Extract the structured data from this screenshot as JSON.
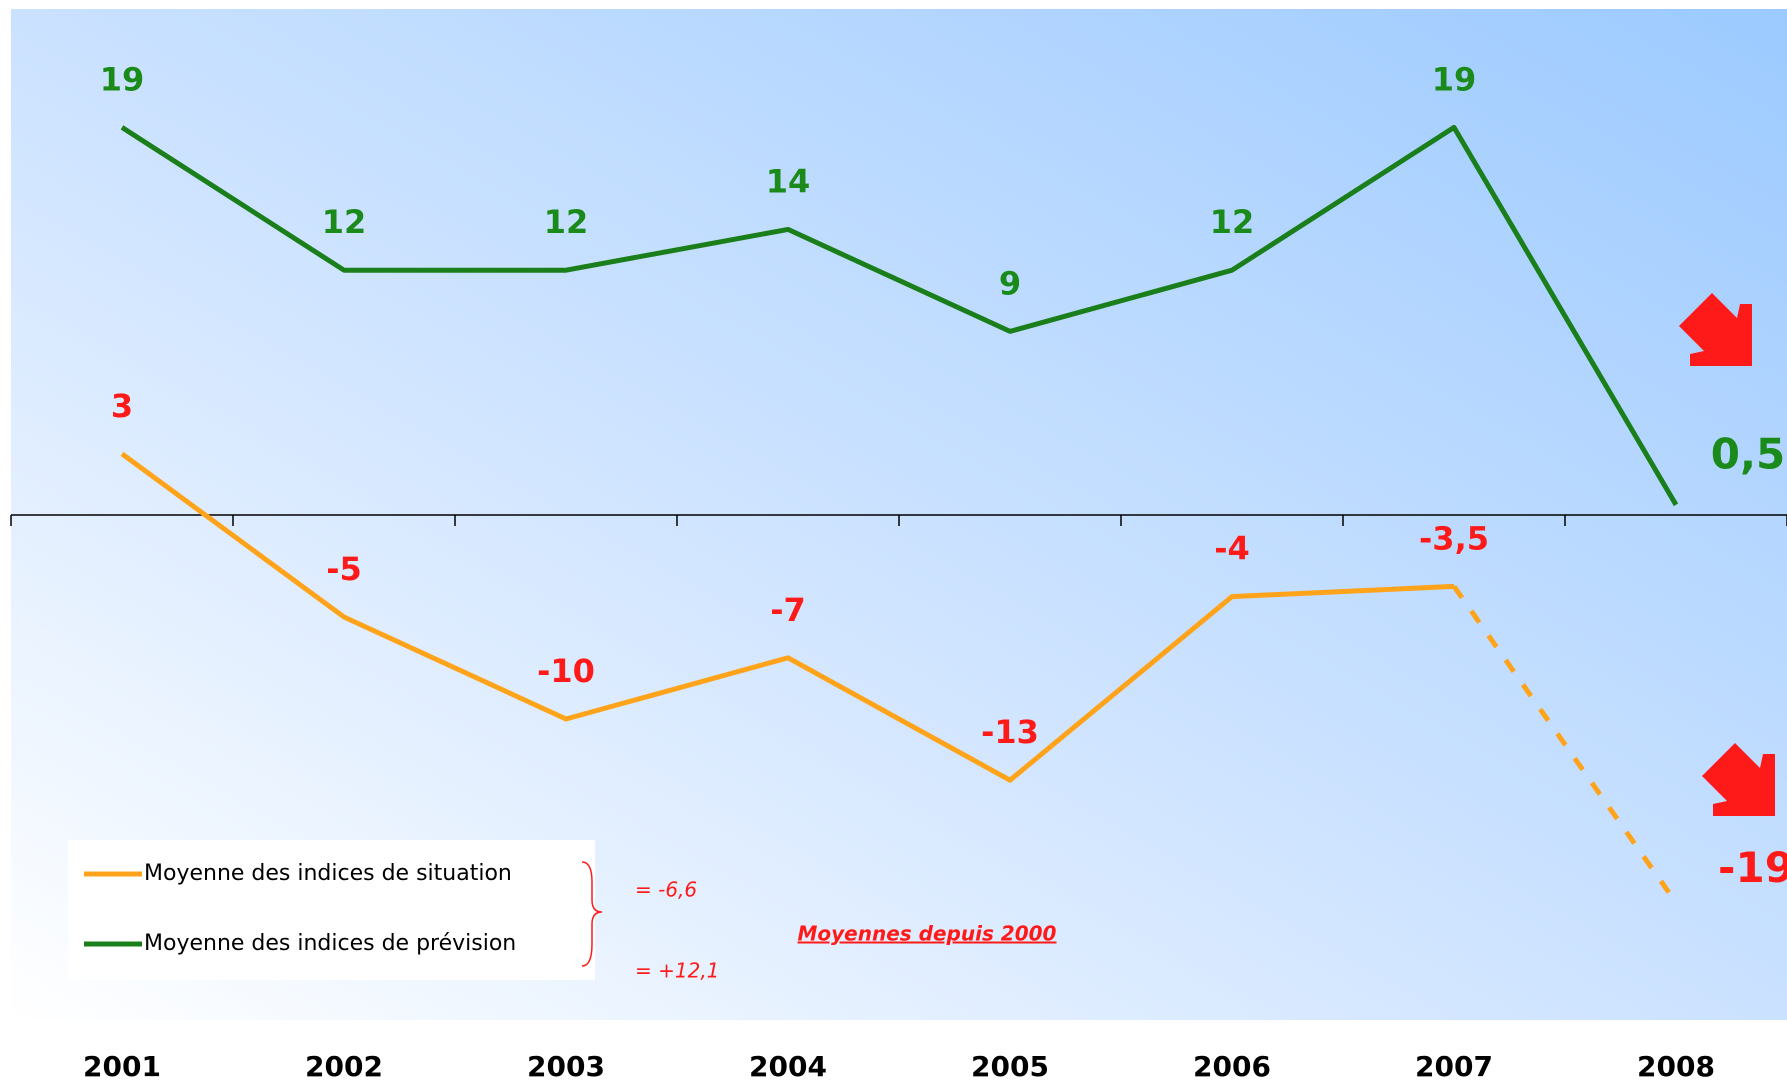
{
  "chart_data": {
    "type": "line",
    "categories": [
      "2001",
      "2002",
      "2003",
      "2004",
      "2005",
      "2006",
      "2007",
      "2008"
    ],
    "series": [
      {
        "name": "Moyenne des indices de situation",
        "color": "#ffa31a",
        "label_color": "#ff1a1a",
        "values": [
          3,
          -5,
          -10,
          -7,
          -13,
          -4,
          -3.5,
          -19
        ],
        "value_labels": [
          "3",
          "-5",
          "-10",
          "-7",
          "-13",
          "-4",
          "-3,5",
          "-19"
        ],
        "dash_last_segment": true
      },
      {
        "name": "Moyenne des indices de prévision",
        "color": "#1a7f1a",
        "label_color": "#1a8a1a",
        "values": [
          19,
          12,
          12,
          14,
          9,
          12,
          19,
          0.5
        ],
        "value_labels": [
          "19",
          "12",
          "12",
          "14",
          "9",
          "12",
          "19",
          "0,5"
        ],
        "dash_last_segment": false
      }
    ],
    "ylim": [
      -25,
      25
    ],
    "annotations": [
      "= -6,6",
      "= +12,1",
      "Moyennes depuis 2000"
    ]
  }
}
